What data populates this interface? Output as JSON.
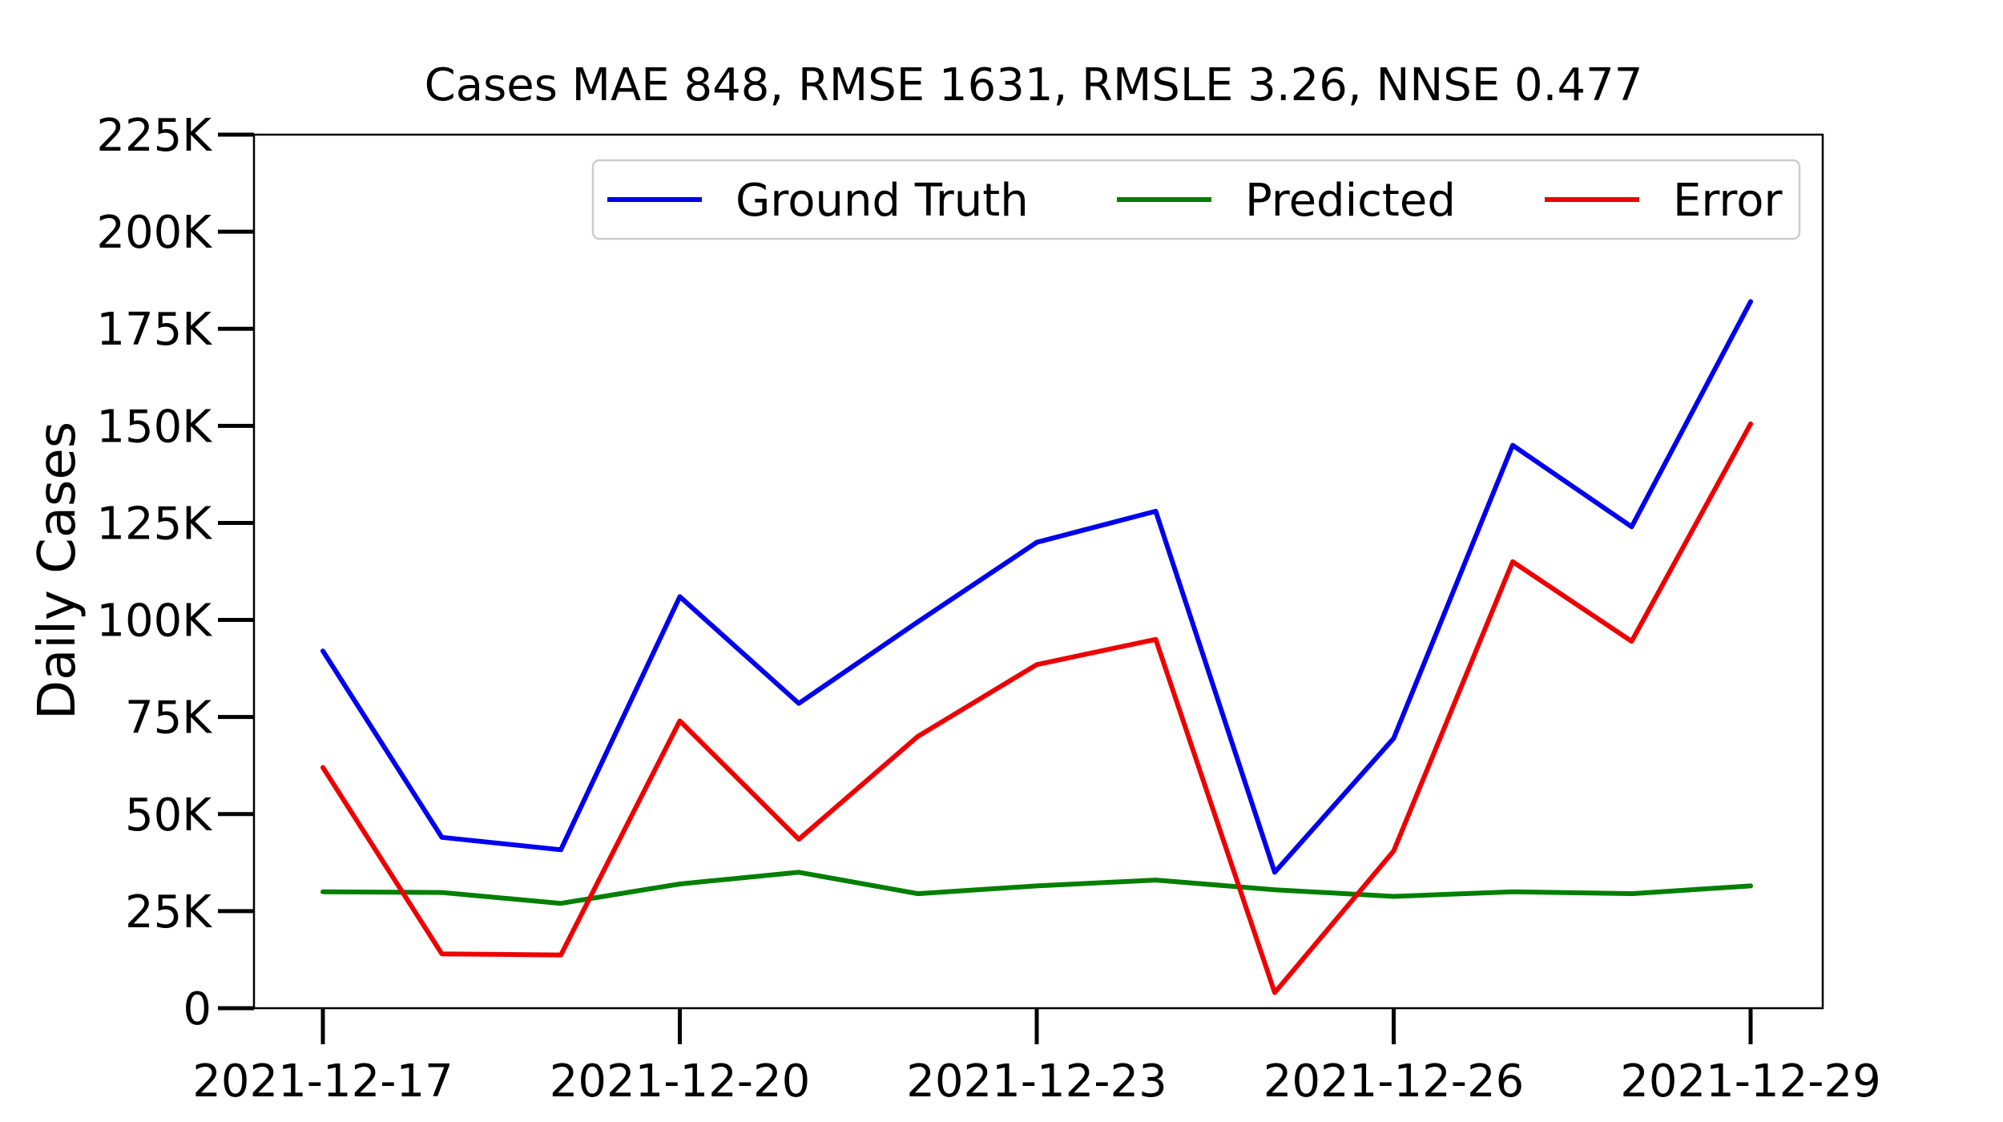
{
  "chart_data": {
    "type": "line",
    "title": "Cases MAE 848, RMSE 1631, RMSLE 3.26, NNSE 0.477",
    "xlabel": "",
    "ylabel": "Daily Cases",
    "x": [
      "2021-12-17",
      "2021-12-18",
      "2021-12-19",
      "2021-12-20",
      "2021-12-21",
      "2021-12-22",
      "2021-12-23",
      "2021-12-24",
      "2021-12-25",
      "2021-12-26",
      "2021-12-27",
      "2021-12-28",
      "2021-12-29"
    ],
    "xticks": [
      "2021-12-17",
      "2021-12-20",
      "2021-12-23",
      "2021-12-26",
      "2021-12-29"
    ],
    "ylim": [
      0,
      225000
    ],
    "yticks": [
      0,
      25000,
      50000,
      75000,
      100000,
      125000,
      150000,
      175000,
      200000,
      225000
    ],
    "ytick_labels": [
      "0",
      "25K",
      "50K",
      "75K",
      "100K",
      "125K",
      "150K",
      "175K",
      "200K",
      "225K"
    ],
    "grid": false,
    "legend_position": "top-right",
    "series": [
      {
        "name": "Ground Truth",
        "color": "#0000ee",
        "values": [
          92000,
          44000,
          40800,
          106000,
          78500,
          99500,
          120000,
          128000,
          35000,
          69500,
          145000,
          124000,
          182000
        ]
      },
      {
        "name": "Predicted",
        "color": "#007f00",
        "values": [
          30000,
          29800,
          27000,
          32000,
          35000,
          29500,
          31500,
          33000,
          30500,
          28800,
          30000,
          29500,
          31500
        ]
      },
      {
        "name": "Error",
        "color": "#ee0000",
        "values": [
          62000,
          14000,
          13700,
          74000,
          43500,
          70000,
          88500,
          95000,
          4000,
          40500,
          115000,
          94500,
          150500
        ]
      }
    ]
  }
}
